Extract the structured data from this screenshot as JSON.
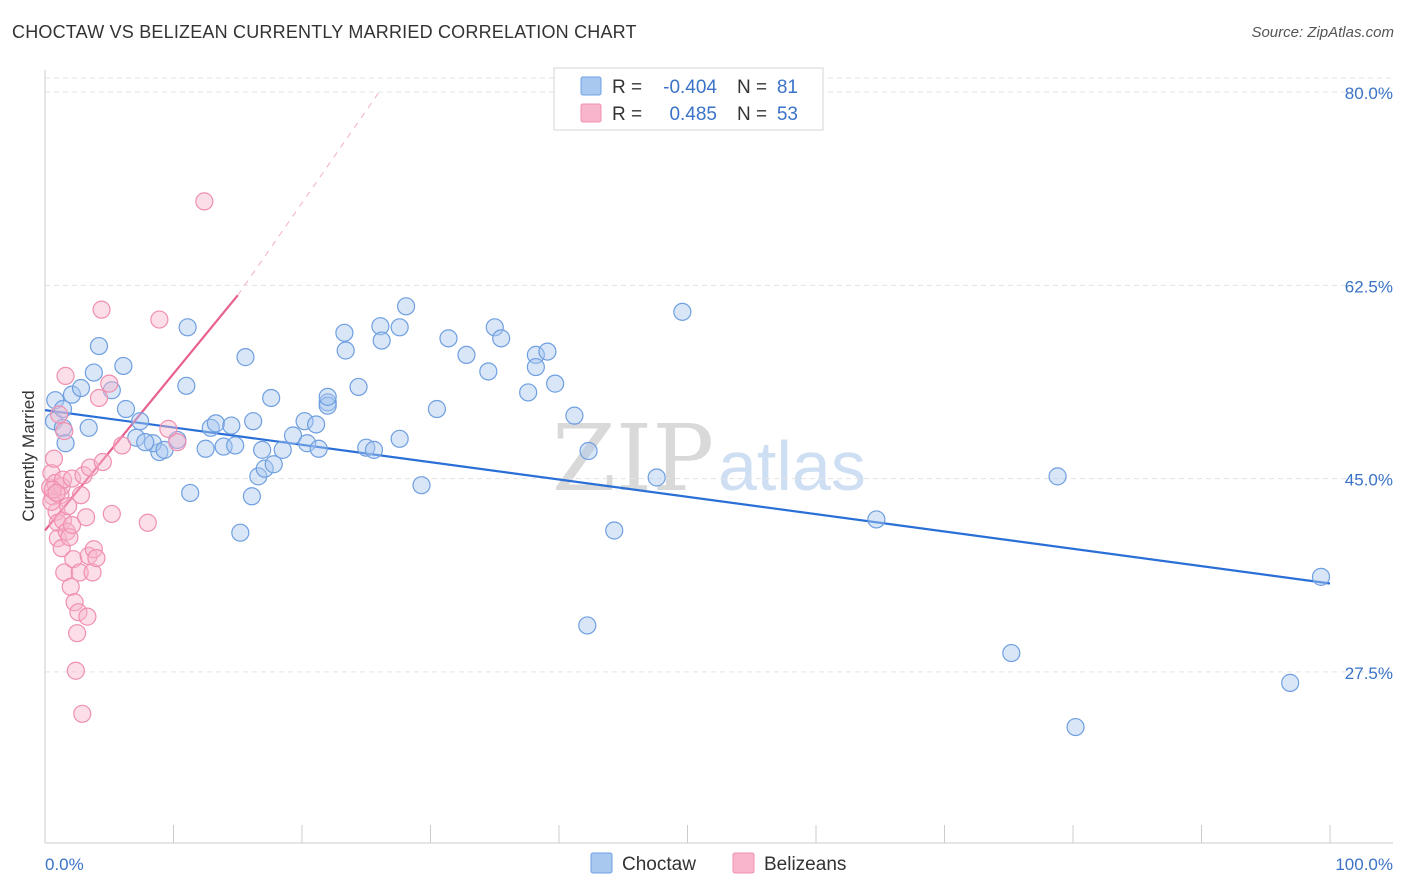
{
  "header": {
    "title": "CHOCTAW VS BELIZEAN CURRENTLY MARRIED CORRELATION CHART",
    "source": "Source: ZipAtlas.com"
  },
  "watermark": {
    "zip": "ZIP",
    "atlas": "atlas"
  },
  "legend": {
    "rows": [
      {
        "r_label": "R =",
        "r_value": "-0.404",
        "n_label": "N =",
        "n_value": "81",
        "color": "#a9c8f0"
      },
      {
        "r_label": "R =",
        "r_value": "0.485",
        "n_label": "N =",
        "n_value": "53",
        "color": "#f7b6cb"
      }
    ]
  },
  "bottom_legend": [
    {
      "label": "Choctaw",
      "color": "#a9c8f0"
    },
    {
      "label": "Belizeans",
      "color": "#f7b6cb"
    }
  ],
  "chart_data": {
    "type": "scatter",
    "title": "CHOCTAW VS BELIZEAN CURRENTLY MARRIED CORRELATION CHART",
    "xlabel": "",
    "ylabel": "Currently Married",
    "xlim": [
      0,
      100
    ],
    "ylim": [
      12,
      82
    ],
    "x_tick_labels": [
      {
        "value": 0,
        "label": "0.0%"
      },
      {
        "value": 100,
        "label": "100.0%"
      }
    ],
    "y_tick_labels": [
      {
        "value": 27.5,
        "label": "27.5%"
      },
      {
        "value": 45.0,
        "label": "45.0%"
      },
      {
        "value": 62.5,
        "label": "62.5%"
      },
      {
        "value": 80.0,
        "label": "80.0%"
      }
    ],
    "grid": true,
    "series": [
      {
        "name": "Choctaw",
        "color": "#6f9fe0",
        "fill": "#a9c8f0",
        "trend": {
          "x": [
            0,
            100
          ],
          "y": [
            51.2,
            35.5
          ],
          "color": "#2a6fd6"
        },
        "points": [
          [
            0.7,
            50.2
          ],
          [
            0.8,
            52.1
          ],
          [
            1.4,
            51.3
          ],
          [
            1.4,
            49.6
          ],
          [
            1.6,
            48.2
          ],
          [
            2.1,
            52.6
          ],
          [
            2.8,
            53.2
          ],
          [
            3.4,
            49.6
          ],
          [
            4.2,
            57.0
          ],
          [
            3.8,
            54.6
          ],
          [
            5.2,
            53.0
          ],
          [
            6.3,
            51.3
          ],
          [
            6.1,
            55.2
          ],
          [
            8.9,
            47.4
          ],
          [
            7.4,
            50.2
          ],
          [
            7.1,
            48.7
          ],
          [
            8.4,
            48.2
          ],
          [
            7.8,
            48.3
          ],
          [
            9.3,
            47.6
          ],
          [
            10.3,
            48.5
          ],
          [
            11.1,
            58.7
          ],
          [
            11.0,
            53.4
          ],
          [
            11.3,
            43.7
          ],
          [
            12.5,
            47.7
          ],
          [
            12.9,
            49.6
          ],
          [
            13.3,
            50.0
          ],
          [
            13.9,
            47.9
          ],
          [
            14.5,
            49.8
          ],
          [
            14.8,
            48.0
          ],
          [
            15.2,
            40.1
          ],
          [
            16.1,
            43.4
          ],
          [
            16.2,
            50.2
          ],
          [
            15.6,
            56.0
          ],
          [
            16.6,
            45.2
          ],
          [
            17.1,
            45.9
          ],
          [
            16.9,
            47.6
          ],
          [
            17.6,
            52.3
          ],
          [
            17.8,
            46.3
          ],
          [
            18.5,
            47.6
          ],
          [
            19.3,
            48.9
          ],
          [
            20.4,
            48.2
          ],
          [
            20.2,
            50.2
          ],
          [
            21.1,
            49.9
          ],
          [
            21.3,
            47.7
          ],
          [
            22.0,
            51.9
          ],
          [
            22.0,
            51.6
          ],
          [
            22.0,
            52.4
          ],
          [
            23.3,
            58.2
          ],
          [
            23.4,
            56.6
          ],
          [
            24.4,
            53.3
          ],
          [
            25.0,
            47.8
          ],
          [
            25.6,
            47.6
          ],
          [
            26.1,
            58.8
          ],
          [
            27.6,
            58.7
          ],
          [
            28.1,
            60.6
          ],
          [
            26.2,
            57.5
          ],
          [
            27.6,
            48.6
          ],
          [
            29.3,
            44.4
          ],
          [
            30.5,
            51.3
          ],
          [
            31.4,
            57.7
          ],
          [
            32.8,
            56.2
          ],
          [
            34.5,
            54.7
          ],
          [
            35.0,
            58.7
          ],
          [
            35.5,
            57.7
          ],
          [
            37.6,
            52.8
          ],
          [
            38.2,
            56.2
          ],
          [
            38.2,
            55.1
          ],
          [
            39.1,
            56.5
          ],
          [
            39.7,
            53.6
          ],
          [
            41.2,
            50.7
          ],
          [
            42.3,
            47.5
          ],
          [
            44.3,
            40.3
          ],
          [
            49.6,
            60.1
          ],
          [
            47.6,
            45.1
          ],
          [
            42.2,
            31.7
          ],
          [
            64.7,
            41.3
          ],
          [
            75.2,
            29.2
          ],
          [
            78.8,
            45.2
          ],
          [
            80.2,
            22.5
          ],
          [
            96.9,
            26.5
          ],
          [
            99.3,
            36.1
          ]
        ]
      },
      {
        "name": "Belizeans",
        "color": "#f08fb0",
        "fill": "#f7b6cb",
        "trend": {
          "x": [
            0,
            15
          ],
          "y": [
            40.3,
            61.6
          ],
          "color": "#e8608f",
          "dashed_extension_to": [
            26,
            80
          ]
        },
        "points": [
          [
            0.4,
            44.2
          ],
          [
            0.5,
            45.5
          ],
          [
            0.6,
            43.4
          ],
          [
            0.7,
            46.8
          ],
          [
            0.8,
            44.6
          ],
          [
            0.9,
            42.0
          ],
          [
            1.0,
            41.0
          ],
          [
            1.0,
            39.6
          ],
          [
            1.1,
            50.8
          ],
          [
            1.2,
            43.5
          ],
          [
            1.3,
            44.3
          ],
          [
            1.3,
            38.7
          ],
          [
            1.4,
            41.2
          ],
          [
            1.4,
            44.9
          ],
          [
            1.5,
            36.5
          ],
          [
            1.5,
            49.3
          ],
          [
            1.6,
            54.3
          ],
          [
            1.7,
            40.2
          ],
          [
            1.8,
            42.5
          ],
          [
            1.9,
            39.7
          ],
          [
            2.0,
            35.2
          ],
          [
            2.1,
            45.0
          ],
          [
            2.1,
            40.8
          ],
          [
            2.2,
            37.7
          ],
          [
            2.3,
            33.8
          ],
          [
            2.4,
            27.6
          ],
          [
            2.5,
            31.0
          ],
          [
            2.6,
            32.9
          ],
          [
            2.7,
            36.5
          ],
          [
            2.8,
            43.5
          ],
          [
            2.9,
            23.7
          ],
          [
            3.0,
            45.3
          ],
          [
            3.2,
            41.5
          ],
          [
            3.3,
            32.5
          ],
          [
            3.4,
            38.0
          ],
          [
            3.5,
            46.0
          ],
          [
            3.7,
            36.5
          ],
          [
            3.8,
            38.6
          ],
          [
            4.0,
            37.8
          ],
          [
            4.2,
            52.3
          ],
          [
            4.4,
            60.3
          ],
          [
            4.5,
            46.5
          ],
          [
            5.0,
            53.6
          ],
          [
            5.2,
            41.8
          ],
          [
            6.0,
            48.0
          ],
          [
            8.0,
            41.0
          ],
          [
            8.9,
            59.4
          ],
          [
            9.6,
            49.5
          ],
          [
            10.3,
            48.3
          ],
          [
            12.4,
            70.1
          ],
          [
            0.5,
            42.9
          ],
          [
            0.6,
            44.0
          ],
          [
            0.9,
            43.7
          ]
        ]
      }
    ],
    "legend_position": "top-center"
  }
}
